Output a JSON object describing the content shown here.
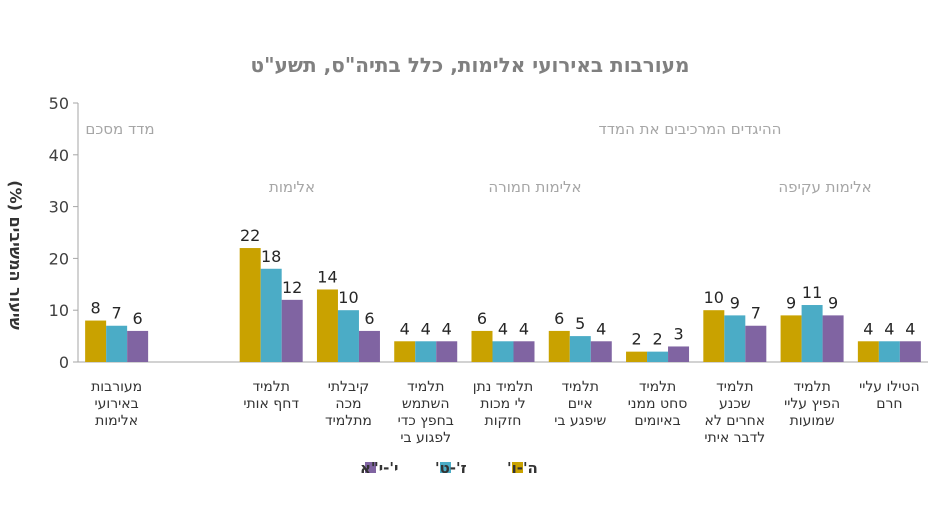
{
  "chart_data": {
    "type": "bar",
    "title": "מעורבות באירועי אלימות, כלל בתיה\"ס, תשע\"ט",
    "ylabel": "שיעור המשיבים (%)",
    "ylim": [
      0,
      50
    ],
    "yticks": [
      0,
      10,
      20,
      30,
      40,
      50
    ],
    "grid": false,
    "legend_position": "bottom",
    "categories": [
      [
        "מעורבות",
        "באירועי",
        "אלימות"
      ],
      [],
      [
        "תלמיד",
        "דחף אותי"
      ],
      [
        "קיבלתי",
        "מכה",
        "מתלמיד"
      ],
      [
        "תלמיד",
        "השתמש",
        "בחפץ כדי",
        "לפגוע בי"
      ],
      [
        "תלמיד נתן",
        "לי מכות",
        "חזקות"
      ],
      [
        "תלמיד",
        "איים",
        "שיפגע בי"
      ],
      [
        "תלמיד",
        "סחט ממני",
        "באיומים"
      ],
      [
        "תלמיד",
        "שכנע",
        "אחרים לא",
        "לדבר איתי"
      ],
      [
        "תלמיד",
        "הפיץ עליי",
        "שמועות"
      ],
      [
        "הטילו עליי",
        "חרם"
      ]
    ],
    "series": [
      {
        "name": "ה'-ו'",
        "color": "#c9a200",
        "values": [
          8,
          null,
          22,
          14,
          4,
          6,
          6,
          2,
          10,
          9,
          4
        ]
      },
      {
        "name": "ז'-ט'",
        "color": "#4bacc6",
        "values": [
          7,
          null,
          18,
          10,
          4,
          4,
          5,
          2,
          9,
          11,
          4
        ]
      },
      {
        "name": "י'-י\"א",
        "color": "#8064a2",
        "values": [
          6,
          null,
          12,
          6,
          4,
          4,
          4,
          3,
          7,
          9,
          4
        ]
      }
    ],
    "annotations": {
      "summary": "מדד מסכם",
      "components": "ההיגדים המרכיבים את המדד",
      "group_violence": "אלימות",
      "group_severe": "אלימות חמורה",
      "group_indirect": "אלימות עקיפה"
    }
  }
}
